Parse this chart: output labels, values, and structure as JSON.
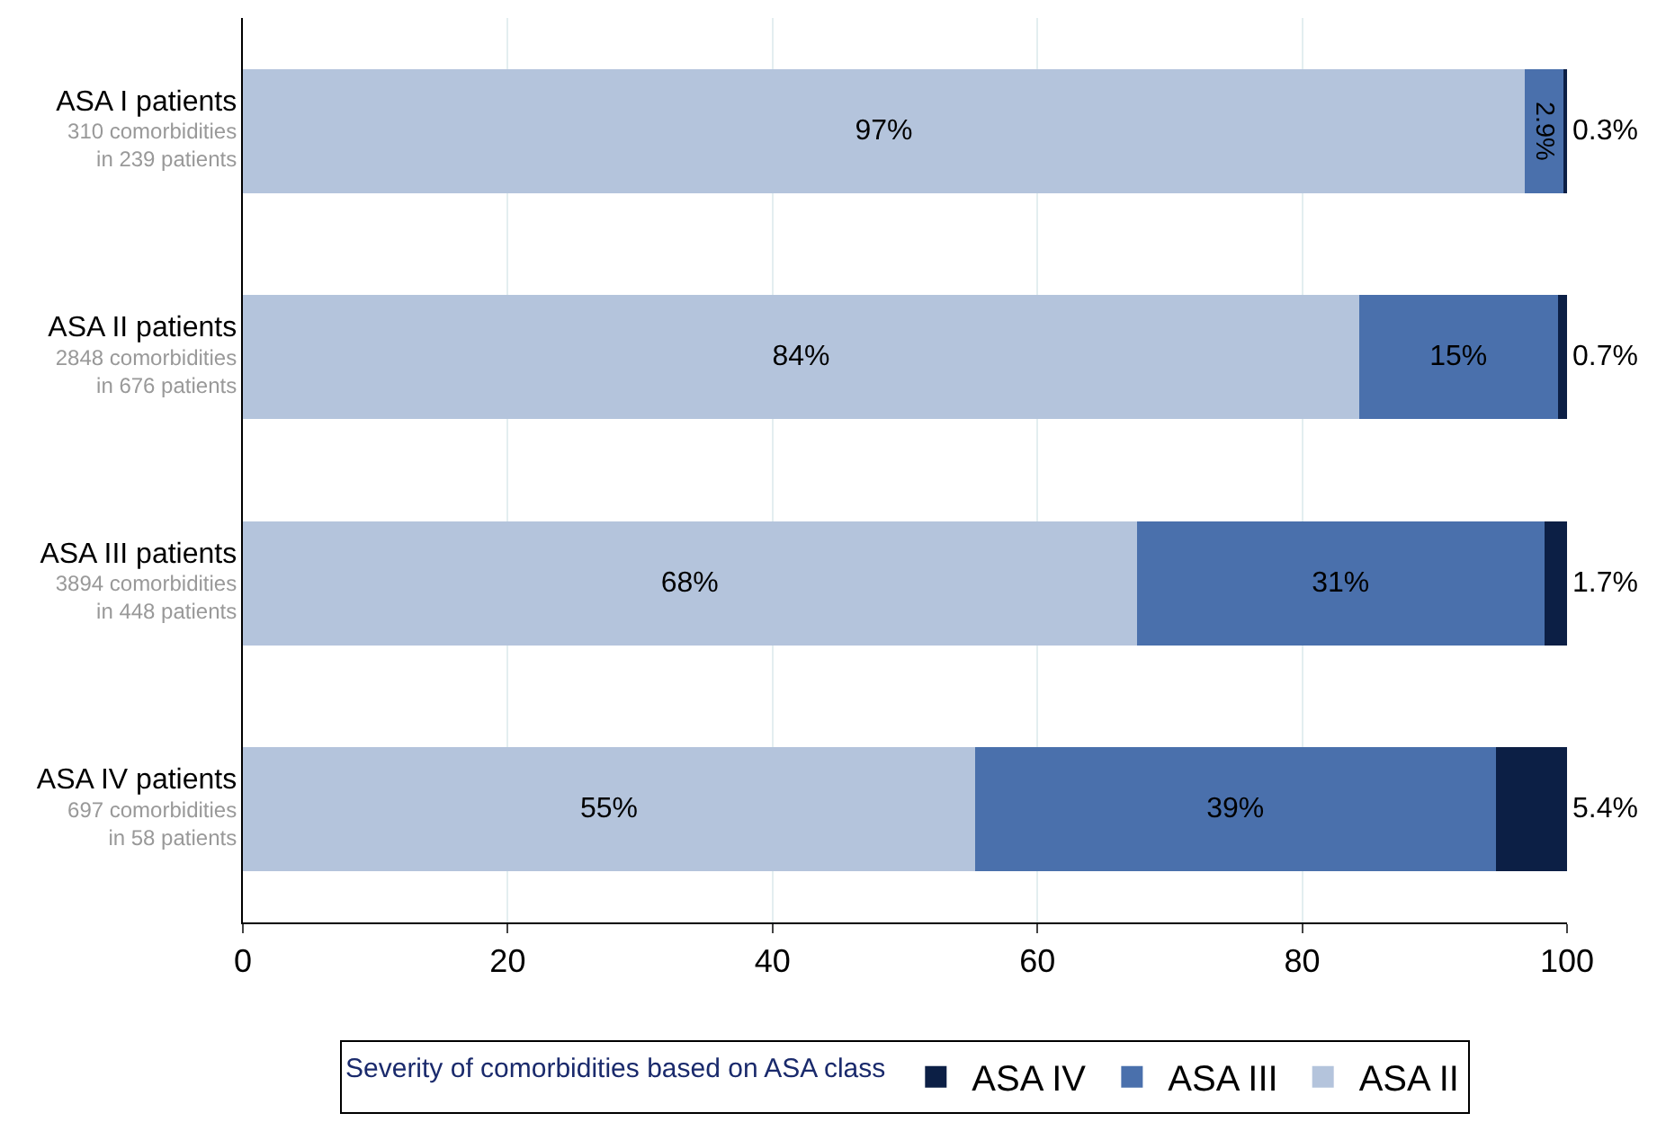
{
  "chart_data": {
    "type": "bar",
    "orientation": "horizontal",
    "stacked": true,
    "categories": [
      "ASA I patients\n310 comorbidities\nin 239 patients",
      "ASA II patients\n2848 comorbidities\nin 676 patients",
      "ASA III patients\n3894 comorbidities\nin 448 patients",
      "ASA IV patients\n697 comorbidities\nin 58 patients"
    ],
    "series": [
      {
        "name": "ASA II",
        "color": "#b4c4dc",
        "values": [
          96.8,
          84.3,
          67.5,
          55.3
        ],
        "value_labels": [
          "97%",
          "84%",
          "68%",
          "55%"
        ]
      },
      {
        "name": "ASA III",
        "color": "#4a70ac",
        "values": [
          2.9,
          15,
          30.8,
          39.3
        ],
        "value_labels": [
          "2.9%",
          "15%",
          "31%",
          "39%"
        ]
      },
      {
        "name": "ASA IV",
        "color": "#0c1f45",
        "values": [
          0.3,
          0.7,
          1.7,
          5.4
        ],
        "value_labels": [
          "0.3%",
          "0.7%",
          "1.7%",
          "5.4%"
        ]
      }
    ],
    "xlim": [
      0,
      100
    ],
    "xticks": [
      0,
      20,
      40,
      60,
      80,
      100
    ],
    "grid": "x",
    "legend": "bottom",
    "legend_title": "Severity of comorbidities based on ASA class"
  }
}
